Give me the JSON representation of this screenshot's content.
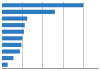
{
  "chart_data": {
    "type": "bar",
    "orientation": "horizontal",
    "categories": [
      null,
      null,
      null,
      null,
      null,
      null,
      null,
      null,
      null,
      null
    ],
    "values": [
      1.0,
      0.65,
      0.31,
      0.28,
      0.27,
      0.25,
      0.24,
      0.22,
      0.14,
      0.07
    ],
    "color": "#2e7bbf",
    "xlim": [
      0,
      1.18
    ],
    "xticks": [
      0.25,
      0.5,
      0.75,
      1.0
    ],
    "grid": true,
    "tick_labels": false
  }
}
